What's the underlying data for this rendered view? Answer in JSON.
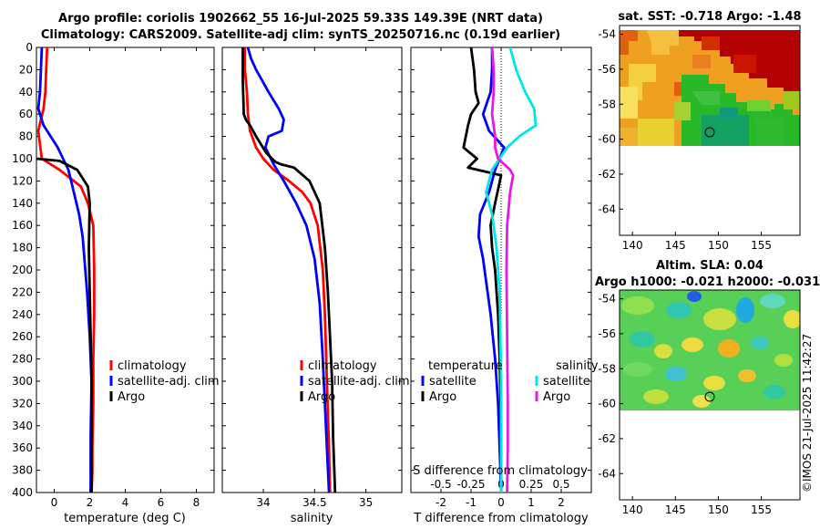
{
  "title_line1": "Argo profile: coriolis 1902662_55 16-Jul-2025 59.33S 149.39E (NRT data)",
  "title_line2": "Climatology: CARS2009. Satellite-adj clim: synTS_20250716.nc (0.19d earlier)",
  "stamp": "©IMOS 21-Jul-2025 11:42:27",
  "colors": {
    "climatology": "#ff0000",
    "satellite": "#0000ff",
    "argo": "#000000",
    "salinity_satellite": "#00e5e5",
    "salinity_argo": "#e619e6"
  },
  "chart_data": [
    {
      "id": "temperature",
      "type": "line",
      "xlabel": "temperature (deg C)",
      "ylabel": "",
      "xlim": [
        -1,
        9
      ],
      "ylim": [
        400,
        0
      ],
      "xticks": [
        0,
        2,
        4,
        6,
        8
      ],
      "yticks": [
        0,
        20,
        40,
        60,
        80,
        100,
        120,
        140,
        160,
        180,
        200,
        220,
        240,
        260,
        280,
        300,
        320,
        340,
        360,
        380,
        400
      ],
      "legend": [
        "climatology",
        "satellite-adj. clim",
        "Argo"
      ],
      "series": [
        {
          "name": "climatology",
          "color": "#ff0000",
          "x": [
            -0.4,
            -0.45,
            -0.5,
            -0.6,
            -0.9,
            -0.7,
            0.3,
            1.5,
            1.9,
            2.2,
            2.25,
            2.25,
            2.2,
            2.2,
            2.15,
            2.15,
            2.1
          ],
          "y": [
            0,
            20,
            40,
            55,
            75,
            100,
            110,
            125,
            140,
            160,
            200,
            240,
            280,
            320,
            360,
            380,
            400
          ]
        },
        {
          "name": "satellite-adj. clim",
          "color": "#0000ff",
          "x": [
            -0.7,
            -0.75,
            -0.8,
            -0.9,
            -0.6,
            0.2,
            0.8,
            1.1,
            1.4,
            1.6,
            1.85,
            2.0,
            2.1,
            2.05,
            2.05
          ],
          "y": [
            0,
            20,
            40,
            55,
            70,
            90,
            110,
            130,
            150,
            170,
            220,
            260,
            300,
            350,
            400
          ]
        },
        {
          "name": "Argo",
          "color": "#000000",
          "x": [
            -1.0,
            0.3,
            1.3,
            1.9,
            2.0,
            1.95,
            2.0,
            2.05,
            2.1,
            2.1,
            2.1,
            2.1
          ],
          "y": [
            100,
            102,
            110,
            125,
            140,
            180,
            220,
            260,
            300,
            340,
            380,
            400
          ]
        }
      ]
    },
    {
      "id": "salinity",
      "type": "line",
      "xlabel": "salinity",
      "xlim": [
        33.6,
        35.35
      ],
      "ylim": [
        400,
        0
      ],
      "xticks": [
        34,
        34.5,
        35
      ],
      "legend": [
        "climatology",
        "satellite-adj. clim",
        "Argo"
      ],
      "series": [
        {
          "name": "climatology",
          "color": "#ff0000",
          "x": [
            33.82,
            33.82,
            33.84,
            33.85,
            33.87,
            33.93,
            34.0,
            34.1,
            34.25,
            34.38,
            34.46,
            34.53,
            34.58,
            34.6,
            34.62,
            34.64,
            34.65
          ],
          "y": [
            0,
            20,
            40,
            60,
            75,
            90,
            100,
            110,
            120,
            130,
            140,
            160,
            200,
            240,
            300,
            360,
            400
          ]
        },
        {
          "name": "satellite-adj. clim",
          "color": "#0000ff",
          "x": [
            33.85,
            33.88,
            33.93,
            34.05,
            34.15,
            34.2,
            34.18,
            34.05,
            34.02,
            34.1,
            34.2,
            34.32,
            34.42,
            34.5,
            34.55,
            34.58,
            34.6,
            34.62,
            34.64
          ],
          "y": [
            0,
            10,
            20,
            40,
            55,
            65,
            75,
            80,
            90,
            105,
            120,
            140,
            160,
            190,
            230,
            280,
            320,
            360,
            400
          ]
        },
        {
          "name": "Argo",
          "color": "#000000",
          "x": [
            33.8,
            33.8,
            33.81,
            33.83,
            33.87,
            33.93,
            34.03,
            34.12,
            34.17,
            34.3,
            34.45,
            34.55,
            34.6,
            34.63,
            34.65,
            34.67,
            34.68,
            34.7
          ],
          "y": [
            0,
            30,
            60,
            65,
            70,
            80,
            95,
            103,
            105,
            108,
            120,
            140,
            180,
            220,
            260,
            300,
            350,
            400
          ]
        }
      ]
    },
    {
      "id": "difference",
      "type": "line",
      "xlabel": "T difference from climatology",
      "top_label": "S difference from climatology",
      "xlim": [
        -3.0,
        3.0
      ],
      "ylim": [
        400,
        0
      ],
      "xticks": [
        -2,
        -1,
        0,
        1,
        2
      ],
      "secondary_xticks": [
        -0.5,
        -0.25,
        0,
        0.25,
        0.5
      ],
      "legend_left_header": "temperature",
      "legend_right_header": "salinity",
      "legend": [
        "satellite",
        "Argo"
      ],
      "series": [
        {
          "name": "temperature satellite",
          "color": "#0000ff",
          "x": [
            -0.3,
            -0.3,
            -0.35,
            -0.6,
            -0.4,
            0.1,
            -0.2,
            -0.4,
            -0.7,
            -0.75,
            -0.6,
            -0.5,
            -0.35,
            -0.2,
            -0.1,
            -0.05,
            0.0
          ],
          "y": [
            0,
            20,
            40,
            60,
            75,
            90,
            110,
            130,
            150,
            170,
            190,
            210,
            240,
            280,
            320,
            360,
            400
          ]
        },
        {
          "name": "temperature Argo",
          "color": "#000000",
          "x": [
            -1.0,
            -0.9,
            -0.85,
            -0.75,
            -1.0,
            -1.1,
            -1.25,
            -0.8,
            -1.1,
            0.0,
            -0.2,
            -0.35,
            -0.3,
            -0.2,
            -0.1,
            -0.05,
            0.0,
            0.0
          ],
          "y": [
            0,
            20,
            40,
            50,
            60,
            70,
            90,
            100,
            108,
            115,
            140,
            160,
            180,
            200,
            240,
            280,
            340,
            400
          ]
        },
        {
          "name": "salinity satellite",
          "color": "#00e5e5",
          "x": [
            0.3,
            0.5,
            0.8,
            1.1,
            1.15,
            0.6,
            0.2,
            -0.3,
            -0.5,
            -0.3,
            -0.15,
            -0.05,
            0.0,
            0.0
          ],
          "y": [
            0,
            20,
            40,
            55,
            70,
            80,
            90,
            110,
            130,
            150,
            180,
            220,
            300,
            400
          ]
        },
        {
          "name": "salinity Argo",
          "color": "#e619e6",
          "x": [
            -0.3,
            -0.25,
            -0.25,
            -0.3,
            -0.2,
            -0.2,
            -0.1,
            0.3,
            0.4,
            0.3,
            0.2,
            0.18,
            0.2,
            0.22,
            0.22,
            0.2
          ],
          "y": [
            0,
            20,
            40,
            60,
            80,
            90,
            100,
            110,
            115,
            130,
            160,
            200,
            260,
            320,
            360,
            400
          ]
        }
      ]
    },
    {
      "id": "sst_map",
      "type": "heatmap",
      "title": "sat. SST: -0.718 Argo: -1.48",
      "xlim": [
        138.5,
        159.5
      ],
      "ylim": [
        -65.5,
        -53.5
      ],
      "xticks": [
        140,
        145,
        150,
        155
      ],
      "yticks": [
        -54,
        -56,
        -58,
        -60,
        -62,
        -64
      ],
      "data_extent_lat": [
        -53.5,
        -60.0
      ],
      "marker": {
        "lon": 149.39,
        "lat": -59.33
      }
    },
    {
      "id": "sla_map",
      "type": "heatmap",
      "title": "Altim. SLA: 0.04",
      "subtitle": "Argo h1000: -0.021 h2000: -0.031",
      "xlim": [
        138.5,
        159.5
      ],
      "ylim": [
        -65.5,
        -53.5
      ],
      "xticks": [
        140,
        145,
        150,
        155
      ],
      "yticks": [
        -54,
        -56,
        -58,
        -60,
        -62,
        -64
      ],
      "data_extent_lat": [
        -53.5,
        -60.0
      ],
      "marker": {
        "lon": 149.39,
        "lat": -59.33
      }
    }
  ]
}
